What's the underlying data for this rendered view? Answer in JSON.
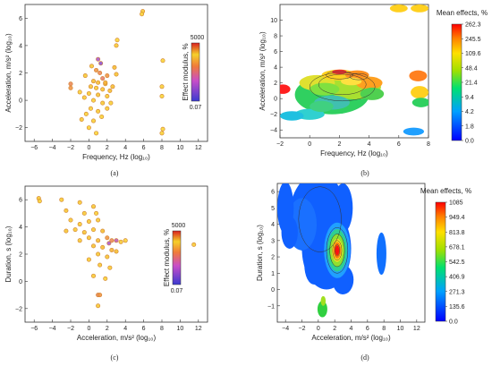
{
  "chart_data": [
    {
      "type": "scatter",
      "panel_label": "(a)",
      "xlabel": "Frequency, Hz (log₁₀)",
      "ylabel": "Acceleration, m/s² (log₁₀)",
      "xlim": [
        -7,
        13
      ],
      "ylim": [
        -3,
        7
      ],
      "xticks": [
        "-6",
        "-4",
        "-2",
        "0",
        "2",
        "4",
        "6",
        "8",
        "10",
        "12"
      ],
      "yticks": [
        "-2",
        "0",
        "2",
        "4",
        "6"
      ],
      "colorbar": {
        "title": "Effect modulus, %",
        "max": "5000",
        "min": "0.07"
      },
      "points": [
        {
          "x": 5.9,
          "y": 6.5,
          "v": 0.2
        },
        {
          "x": 5.8,
          "y": 6.3,
          "v": 0.15
        },
        {
          "x": 3.1,
          "y": 4.4,
          "v": 0.1
        },
        {
          "x": 3.0,
          "y": 4.0,
          "v": 0.2
        },
        {
          "x": 8.1,
          "y": 2.9,
          "v": 0.1
        },
        {
          "x": 8.0,
          "y": 1.0,
          "v": 0.15
        },
        {
          "x": 8.0,
          "y": 0.3,
          "v": 0.1
        },
        {
          "x": 8.1,
          "y": -2.1,
          "v": 0.1
        },
        {
          "x": 8.0,
          "y": -2.4,
          "v": 0.15
        },
        {
          "x": -2.0,
          "y": 1.2,
          "v": 0.55
        },
        {
          "x": -2.0,
          "y": 0.9,
          "v": 0.5
        },
        {
          "x": 1.0,
          "y": 3.0,
          "v": 0.85
        },
        {
          "x": 1.3,
          "y": 2.7,
          "v": 0.9
        },
        {
          "x": 0.8,
          "y": 2.2,
          "v": 0.5
        },
        {
          "x": 1.2,
          "y": 2.0,
          "v": 0.55
        },
        {
          "x": 2.0,
          "y": 1.8,
          "v": 0.5
        },
        {
          "x": 1.5,
          "y": 1.6,
          "v": 0.6
        },
        {
          "x": 0.5,
          "y": 1.4,
          "v": 0.3
        },
        {
          "x": 1.0,
          "y": 1.3,
          "v": 0.3
        },
        {
          "x": 1.8,
          "y": 1.2,
          "v": 0.3
        },
        {
          "x": 0.2,
          "y": 1.0,
          "v": 0.25
        },
        {
          "x": 0.8,
          "y": 0.9,
          "v": 0.2
        },
        {
          "x": 1.5,
          "y": 0.8,
          "v": 0.25
        },
        {
          "x": 2.3,
          "y": 0.7,
          "v": 0.3
        },
        {
          "x": 0.0,
          "y": 0.5,
          "v": 0.2
        },
        {
          "x": 1.0,
          "y": 0.4,
          "v": 0.25
        },
        {
          "x": 2.0,
          "y": 0.3,
          "v": 0.2
        },
        {
          "x": -0.5,
          "y": 0.2,
          "v": 0.2
        },
        {
          "x": 0.5,
          "y": 0.0,
          "v": 0.15
        },
        {
          "x": 1.5,
          "y": -0.2,
          "v": 0.2
        },
        {
          "x": 0.2,
          "y": -0.6,
          "v": 0.15
        },
        {
          "x": 1.0,
          "y": -0.8,
          "v": 0.2
        },
        {
          "x": 2.0,
          "y": -0.6,
          "v": 0.2
        },
        {
          "x": -0.3,
          "y": -1.0,
          "v": 0.15
        },
        {
          "x": 0.5,
          "y": -1.5,
          "v": 0.15
        },
        {
          "x": -0.8,
          "y": -1.4,
          "v": 0.2
        },
        {
          "x": 0.0,
          "y": -2.0,
          "v": 0.15
        },
        {
          "x": 0.8,
          "y": -2.4,
          "v": 0.1
        },
        {
          "x": 1.8,
          "y": 1.3,
          "v": 0.35
        },
        {
          "x": 2.6,
          "y": 1.0,
          "v": 0.3
        },
        {
          "x": 3.0,
          "y": 1.9,
          "v": 0.25
        },
        {
          "x": 2.8,
          "y": 2.4,
          "v": 0.3
        },
        {
          "x": 0.3,
          "y": 2.5,
          "v": 0.2
        },
        {
          "x": -0.4,
          "y": 1.8,
          "v": 0.2
        },
        {
          "x": -1.0,
          "y": 0.6,
          "v": 0.15
        },
        {
          "x": 1.4,
          "y": -1.2,
          "v": 0.15
        },
        {
          "x": 2.4,
          "y": -0.2,
          "v": 0.15
        }
      ]
    },
    {
      "type": "heatmap",
      "panel_label": "(b)",
      "xlabel": "Frequency, Hz (log₁₀)",
      "ylabel": "Acceleration, m/s² (log₁₀)",
      "xlim": [
        -2,
        8
      ],
      "ylim": [
        -5,
        12
      ],
      "xticks": [
        "-2",
        "0",
        "2",
        "4",
        "6",
        "8"
      ],
      "yticks": [
        "-4",
        "-2",
        "0",
        "2",
        "4",
        "6",
        "8",
        "10"
      ],
      "colorbar": {
        "title": "Mean effects, %",
        "ticks": [
          "262.3",
          "245.5",
          "109.6",
          "48.4",
          "21.4",
          "9.4",
          "4.2",
          "1.8",
          "0.0"
        ]
      }
    },
    {
      "type": "scatter",
      "panel_label": "(c)",
      "xlabel": "Acceleration, m/s² (log₁₀)",
      "ylabel": "Duration, s (log₁₀)",
      "xlim": [
        -7,
        13
      ],
      "ylim": [
        -3,
        7
      ],
      "xticks": [
        "-6",
        "-4",
        "-2",
        "0",
        "2",
        "4",
        "6",
        "8",
        "10",
        "12"
      ],
      "yticks": [
        "-2",
        "0",
        "2",
        "4",
        "6"
      ],
      "colorbar": {
        "title": "Effect modulus, %",
        "max": "5000",
        "min": "0.07"
      },
      "points": [
        {
          "x": -5.5,
          "y": 6.1,
          "v": 0.2
        },
        {
          "x": -5.4,
          "y": 5.9,
          "v": 0.15
        },
        {
          "x": -3.0,
          "y": 6.0,
          "v": 0.2
        },
        {
          "x": -2.5,
          "y": 5.2,
          "v": 0.25
        },
        {
          "x": -1.0,
          "y": 5.8,
          "v": 0.2
        },
        {
          "x": -0.5,
          "y": 5.0,
          "v": 0.2
        },
        {
          "x": 0.5,
          "y": 5.5,
          "v": 0.2
        },
        {
          "x": 0.8,
          "y": 5.0,
          "v": 0.15
        },
        {
          "x": -2.0,
          "y": 4.5,
          "v": 0.2
        },
        {
          "x": -1.0,
          "y": 4.2,
          "v": 0.2
        },
        {
          "x": 0.0,
          "y": 4.4,
          "v": 0.2
        },
        {
          "x": 1.0,
          "y": 4.5,
          "v": 0.2
        },
        {
          "x": -2.5,
          "y": 3.7,
          "v": 0.25
        },
        {
          "x": -1.5,
          "y": 3.8,
          "v": 0.2
        },
        {
          "x": -0.5,
          "y": 3.6,
          "v": 0.25
        },
        {
          "x": 0.5,
          "y": 3.8,
          "v": 0.2
        },
        {
          "x": 1.5,
          "y": 3.7,
          "v": 0.3
        },
        {
          "x": 2.0,
          "y": 3.2,
          "v": 0.5
        },
        {
          "x": 2.5,
          "y": 3.0,
          "v": 0.55
        },
        {
          "x": 3.0,
          "y": 3.0,
          "v": 0.8
        },
        {
          "x": 2.2,
          "y": 2.8,
          "v": 0.85
        },
        {
          "x": 1.0,
          "y": 3.0,
          "v": 0.3
        },
        {
          "x": 0.0,
          "y": 3.2,
          "v": 0.25
        },
        {
          "x": -1.0,
          "y": 3.0,
          "v": 0.2
        },
        {
          "x": 0.5,
          "y": 2.6,
          "v": 0.25
        },
        {
          "x": 1.5,
          "y": 2.5,
          "v": 0.3
        },
        {
          "x": 2.5,
          "y": 2.3,
          "v": 0.35
        },
        {
          "x": 3.0,
          "y": 2.2,
          "v": 0.3
        },
        {
          "x": 1.0,
          "y": 2.0,
          "v": 0.2
        },
        {
          "x": 2.0,
          "y": 1.8,
          "v": 0.25
        },
        {
          "x": 0.0,
          "y": 1.6,
          "v": 0.2
        },
        {
          "x": 1.2,
          "y": 1.2,
          "v": 0.2
        },
        {
          "x": 2.3,
          "y": 1.0,
          "v": 0.2
        },
        {
          "x": 0.5,
          "y": 0.4,
          "v": 0.2
        },
        {
          "x": 1.8,
          "y": 0.2,
          "v": 0.15
        },
        {
          "x": 1.0,
          "y": -1.0,
          "v": 0.55
        },
        {
          "x": 1.2,
          "y": -1.0,
          "v": 0.5
        },
        {
          "x": 1.0,
          "y": -1.8,
          "v": 0.2
        },
        {
          "x": 11.5,
          "y": 2.7,
          "v": 0.2
        },
        {
          "x": 3.5,
          "y": 2.9,
          "v": 0.2
        },
        {
          "x": 4.0,
          "y": 3.0,
          "v": 0.15
        }
      ]
    },
    {
      "type": "heatmap",
      "panel_label": "(d)",
      "xlabel": "Acceleration, m/s² (log₁₀)",
      "ylabel": "Duration, s (log₁₀)",
      "xlim": [
        -5,
        13
      ],
      "ylim": [
        -2,
        6.5
      ],
      "xticks": [
        "-4",
        "-2",
        "0",
        "2",
        "4",
        "6",
        "8",
        "10",
        "12"
      ],
      "yticks": [
        "-1",
        "0",
        "1",
        "2",
        "3",
        "4",
        "5",
        "6"
      ],
      "colorbar": {
        "title": "Mean effects, %",
        "ticks": [
          "1085",
          "949.4",
          "813.8",
          "678.1",
          "542.5",
          "406.9",
          "271.3",
          "135.6",
          "0.0"
        ]
      }
    }
  ]
}
